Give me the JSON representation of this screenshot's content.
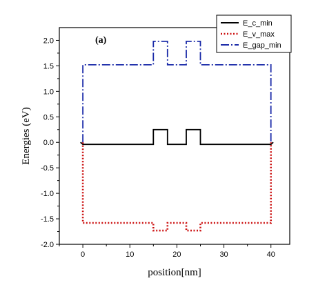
{
  "chart_data": {
    "type": "line",
    "panel_label": "(a)",
    "xlabel": "position[nm]",
    "ylabel": "Energies (eV)",
    "xlim": [
      -5,
      44
    ],
    "ylim": [
      -2.0,
      2.25
    ],
    "x_ticks": [
      0,
      10,
      20,
      30,
      40
    ],
    "y_ticks": [
      -2.0,
      -1.5,
      -1.0,
      -0.5,
      0.0,
      0.5,
      1.0,
      1.5,
      2.0
    ],
    "x_tick_labels": [
      "0",
      "10",
      "20",
      "30",
      "40"
    ],
    "y_tick_labels": [
      "-2.0",
      "-1.5",
      "-1.0",
      "-0.5",
      "0.0",
      "0.5",
      "1.0",
      "1.5",
      "2.0"
    ],
    "grid": false,
    "legend_position": "top-right",
    "series": [
      {
        "name": "E_c_min",
        "color": "#000000",
        "style": "solid",
        "x": [
          -0.5,
          0,
          15,
          15,
          18,
          18,
          22,
          22,
          25,
          25,
          40,
          40.5
        ],
        "y": [
          0.0,
          -0.04,
          -0.04,
          0.25,
          0.25,
          -0.04,
          -0.04,
          0.25,
          0.25,
          -0.04,
          -0.04,
          0.0
        ]
      },
      {
        "name": "E_v_max",
        "color": "#cc1111",
        "style": "dotted",
        "x": [
          0,
          0,
          15,
          15,
          18,
          18,
          22,
          22,
          25,
          25,
          40,
          40
        ],
        "y": [
          0.0,
          -1.58,
          -1.58,
          -1.73,
          -1.73,
          -1.58,
          -1.58,
          -1.73,
          -1.73,
          -1.58,
          -1.58,
          0.0
        ]
      },
      {
        "name": "E_gap_min",
        "color": "#1a2aa8",
        "style": "dashdot",
        "x": [
          0,
          0,
          15,
          15,
          18,
          18,
          22,
          22,
          25,
          25,
          40,
          40
        ],
        "y": [
          0.0,
          1.52,
          1.52,
          1.98,
          1.98,
          1.52,
          1.52,
          1.98,
          1.98,
          1.52,
          1.52,
          0.0
        ]
      }
    ]
  }
}
